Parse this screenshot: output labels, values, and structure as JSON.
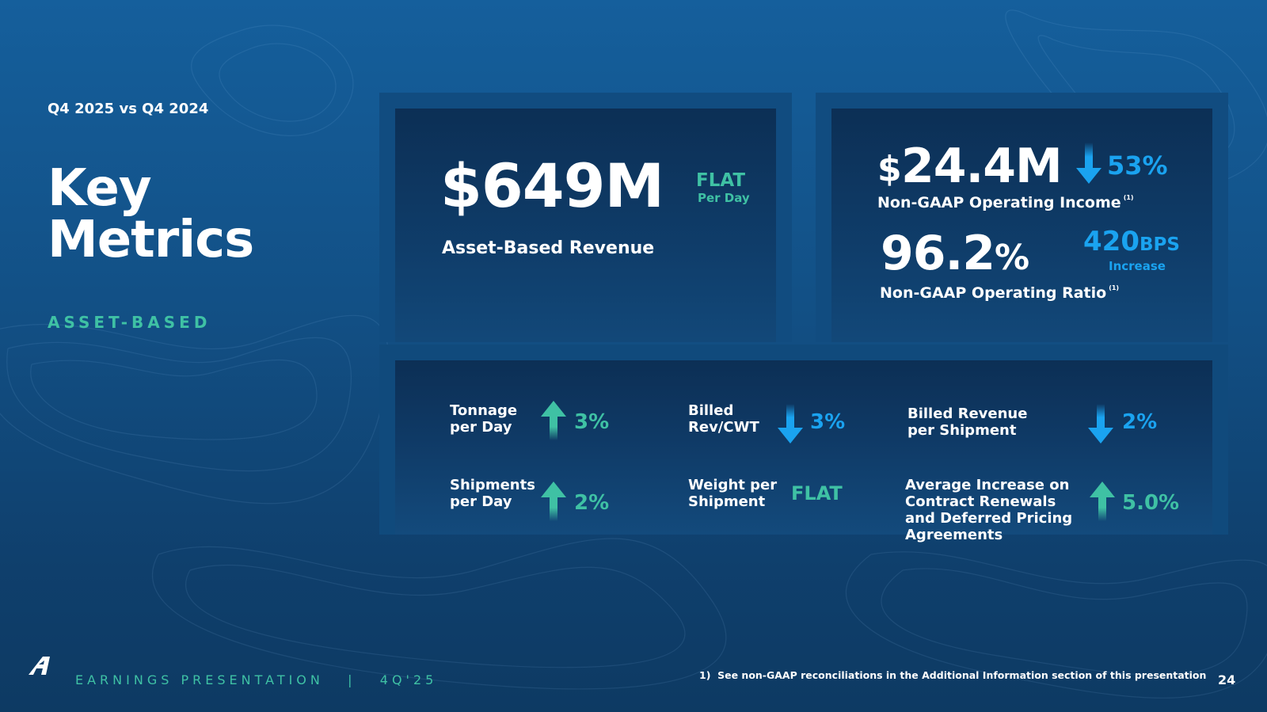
{
  "header": {
    "subtitle": "Q4 2025 vs Q4 2024",
    "title_line1": "Key",
    "title_line2": "Metrics",
    "section": "ASSET-BASED"
  },
  "revenue": {
    "value": "$649M",
    "change": "FLAT",
    "change_note": "Per Day",
    "label": "Asset-Based Revenue"
  },
  "income": {
    "currency": "$",
    "value": "24.4M",
    "change": "53%",
    "label": "Non-GAAP Operating Income",
    "footnote_mark": "(1)"
  },
  "ratio": {
    "value": "96.2",
    "unit": "%",
    "change_value": "420",
    "change_unit": "BPS",
    "change_note": "Increase",
    "label": "Non-GAAP Operating Ratio",
    "footnote_mark": "(1)"
  },
  "metrics": [
    {
      "label_line1": "Tonnage",
      "label_line2": "per Day",
      "value": "3%",
      "direction": "up"
    },
    {
      "label_line1": "Billed",
      "label_line2": "Rev/CWT",
      "value": "3%",
      "direction": "down"
    },
    {
      "label_line1": "Billed Revenue",
      "label_line2": "per Shipment",
      "value": "2%",
      "direction": "down"
    },
    {
      "label_line1": "Shipments",
      "label_line2": "per Day",
      "value": "2%",
      "direction": "up"
    },
    {
      "label_line1": "Weight per",
      "label_line2": "Shipment",
      "value": "FLAT",
      "direction": "flat"
    },
    {
      "label_line1": "Average Increase on",
      "label_line2": "Contract Renewals",
      "label_line3": "and Deferred Pricing",
      "label_line4": "Agreements",
      "value": "5.0%",
      "direction": "up"
    }
  ],
  "footer": {
    "logo_icon": "company-logo-icon",
    "presentation": "EARNINGS PRESENTATION   |   4Q'25",
    "footnote": "1)  See non-GAAP reconciliations in the Additional Information section of this presentation",
    "page_number": "24"
  },
  "colors": {
    "green": "#3fc1a4",
    "blue": "#1aa3f0"
  }
}
